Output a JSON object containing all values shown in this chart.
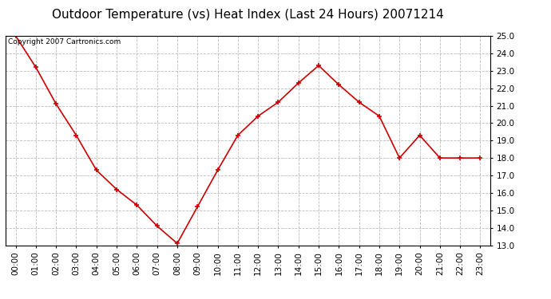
{
  "title": "Outdoor Temperature (vs) Heat Index (Last 24 Hours) 20071214",
  "copyright_text": "Copyright 2007 Cartronics.com",
  "x_labels": [
    "00:00",
    "01:00",
    "02:00",
    "03:00",
    "04:00",
    "05:00",
    "06:00",
    "07:00",
    "08:00",
    "09:00",
    "10:00",
    "11:00",
    "12:00",
    "13:00",
    "14:00",
    "15:00",
    "16:00",
    "17:00",
    "18:00",
    "19:00",
    "20:00",
    "21:00",
    "22:00",
    "23:00"
  ],
  "y_values": [
    25.0,
    23.2,
    21.1,
    19.3,
    17.3,
    16.2,
    15.3,
    14.1,
    13.1,
    15.2,
    17.3,
    19.3,
    20.4,
    21.2,
    22.3,
    23.3,
    22.2,
    21.2,
    20.4,
    18.0,
    19.3,
    18.0,
    18.0,
    18.0
  ],
  "ylim_min": 13.0,
  "ylim_max": 25.0,
  "y_ticks": [
    13.0,
    14.0,
    15.0,
    16.0,
    17.0,
    18.0,
    19.0,
    20.0,
    21.0,
    22.0,
    23.0,
    24.0,
    25.0
  ],
  "line_color": "#cc0000",
  "marker": "+",
  "marker_size": 5,
  "marker_edge_width": 1.2,
  "line_width": 1.2,
  "background_color": "#ffffff",
  "plot_bg_color": "#ffffff",
  "grid_color": "#bbbbbb",
  "title_fontsize": 11,
  "tick_fontsize": 7.5,
  "copyright_fontsize": 6.5
}
